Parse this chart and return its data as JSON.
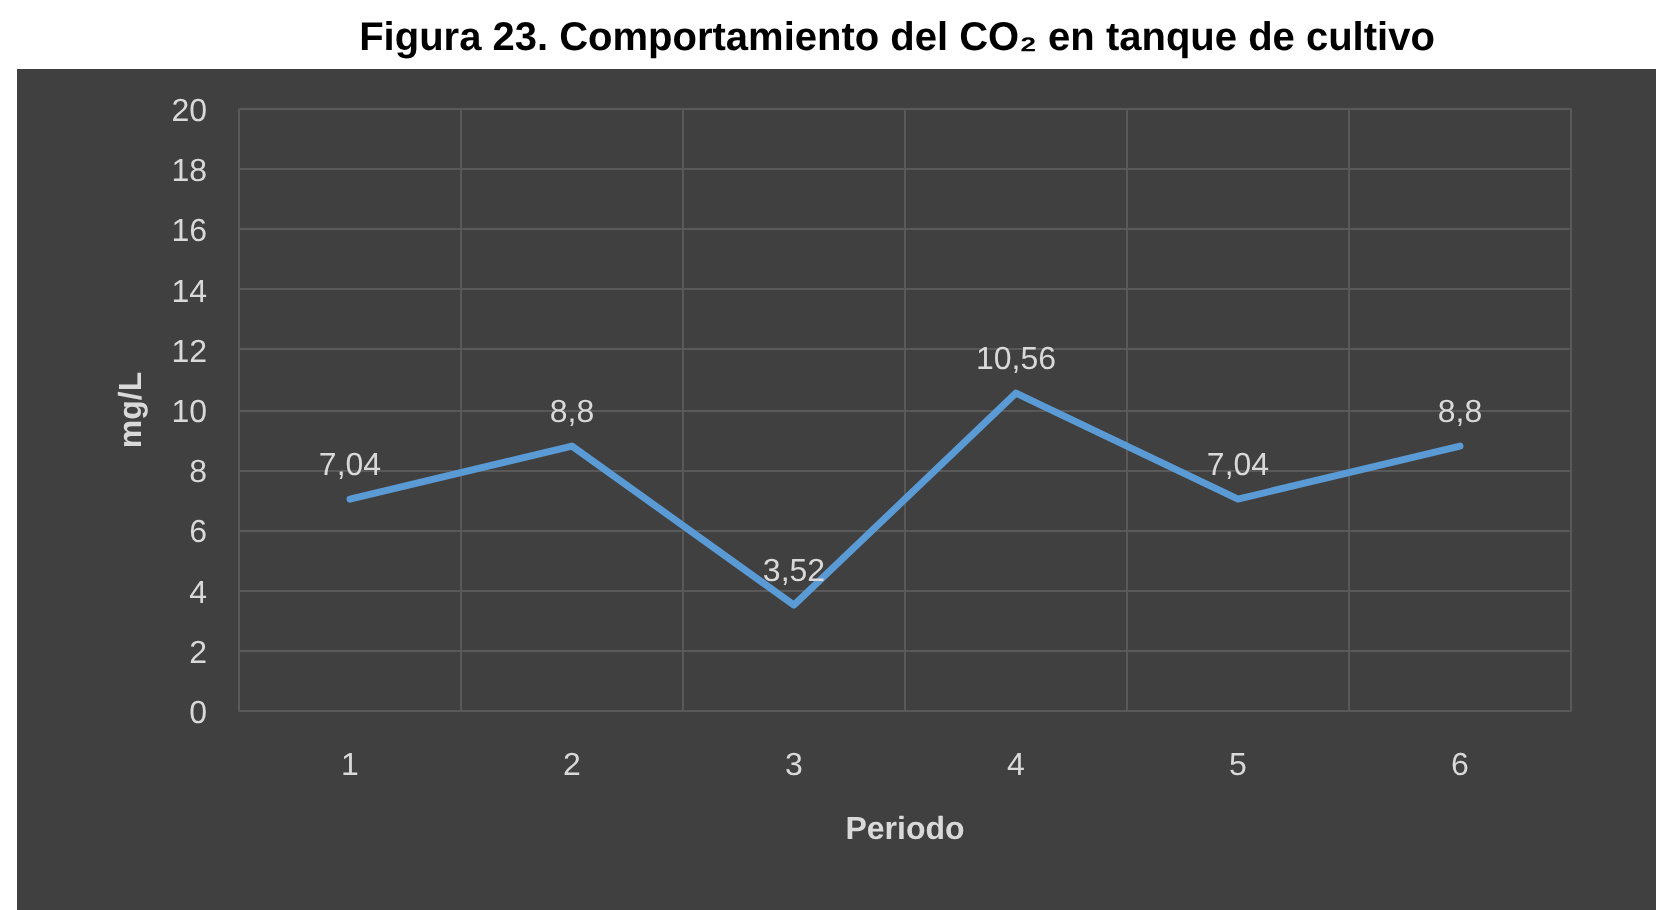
{
  "chart_data": {
    "type": "line",
    "title": "Figura 23. Comportamiento del CO₂ en tanque de cultivo",
    "xlabel": "Periodo",
    "ylabel": "mg/L",
    "categories": [
      "1",
      "2",
      "3",
      "4",
      "5",
      "6"
    ],
    "values": [
      7.04,
      8.8,
      3.52,
      10.56,
      7.04,
      8.8
    ],
    "color": "#5b9bd5",
    "value_labels": [
      "7,04",
      "8,8",
      "3,52",
      "10,56",
      "7,04",
      "8,8"
    ],
    "ylim": [
      0,
      20
    ],
    "yticks": [
      0,
      2,
      4,
      6,
      8,
      10,
      12,
      14,
      16,
      18,
      20
    ],
    "grid": true,
    "line_style": "solid"
  }
}
